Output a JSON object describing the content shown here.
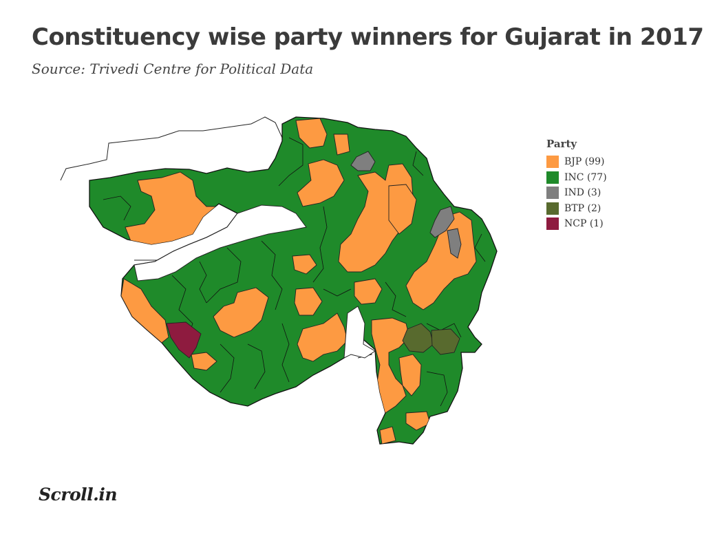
{
  "header": {
    "title": "Constituency wise party winners for Gujarat in 2017",
    "subtitle": "Source: Trivedi Centre for Political Data"
  },
  "legend": {
    "title": "Party",
    "items": [
      {
        "label": "BJP (99)",
        "party": "BJP",
        "seats": 99,
        "color": "#fd9a42"
      },
      {
        "label": "INC (77)",
        "party": "INC",
        "seats": 77,
        "color": "#1f8a2a"
      },
      {
        "label": "IND (3)",
        "party": "IND",
        "seats": 3,
        "color": "#7f7f7f"
      },
      {
        "label": "BTP (2)",
        "party": "BTP",
        "seats": 2,
        "color": "#586a2e"
      },
      {
        "label": "NCP (1)",
        "party": "NCP",
        "seats": 1,
        "color": "#8e1b3f"
      }
    ]
  },
  "branding": {
    "text": "Scroll.in"
  },
  "colors": {
    "outline": "#1a1a1a",
    "background": "#ffffff"
  }
}
